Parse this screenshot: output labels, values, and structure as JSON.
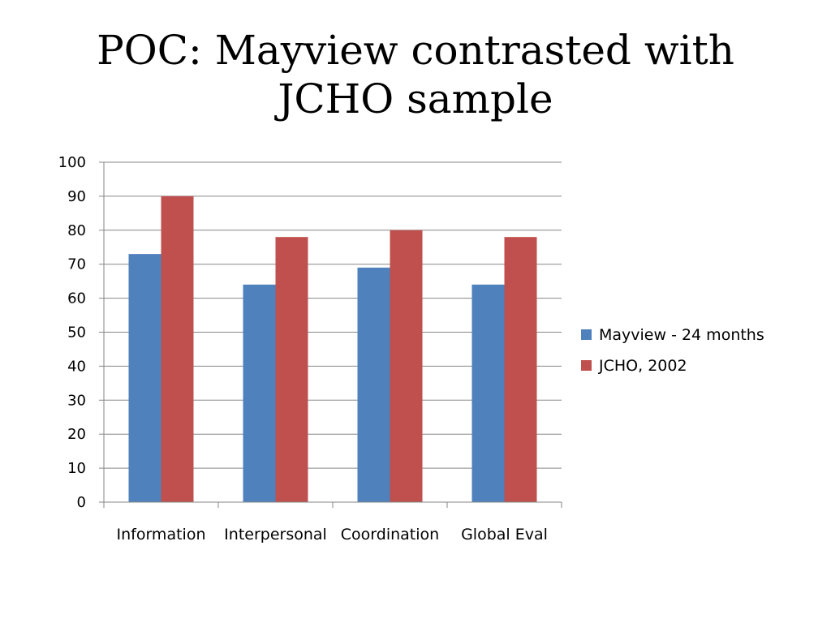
{
  "slide": {
    "title": "POC: Mayview contrasted with JCHO sample"
  },
  "chart_data": {
    "type": "bar",
    "categories": [
      "Information",
      "Interpersonal",
      "Coordination",
      "Global Eval"
    ],
    "series": [
      {
        "name": "Mayview - 24 months",
        "values": [
          73,
          64,
          69,
          64
        ],
        "color": "#4F81BD"
      },
      {
        "name": "JCHO, 2002",
        "values": [
          90,
          78,
          80,
          78
        ],
        "color": "#C0504D"
      }
    ],
    "ylim": [
      0,
      100
    ],
    "yticks": [
      0,
      10,
      20,
      30,
      40,
      50,
      60,
      70,
      80,
      90,
      100
    ],
    "grid": true,
    "legend_position": "right",
    "xlabel": "",
    "ylabel": ""
  }
}
